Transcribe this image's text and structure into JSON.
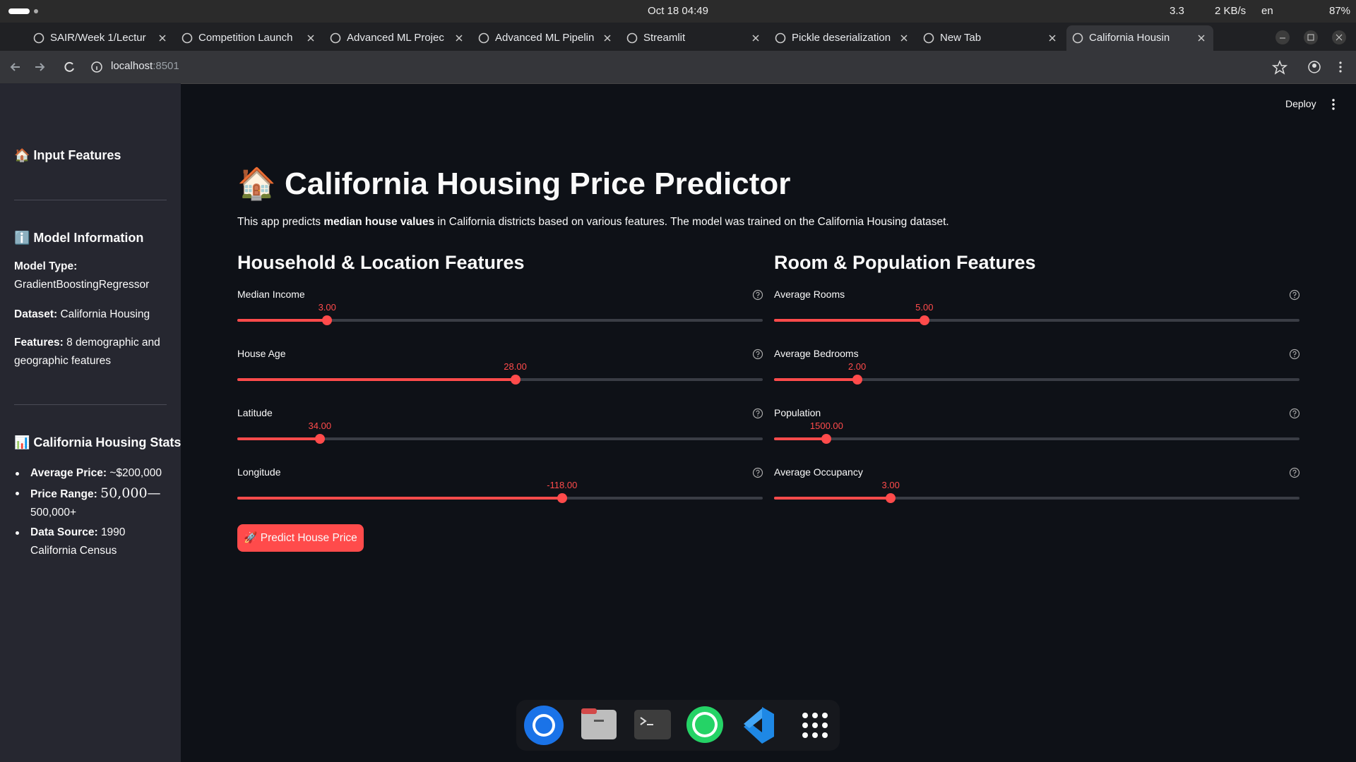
{
  "system_bar": {
    "date_time": "Oct 18  04:49",
    "display": "3.3",
    "network": "2 KB/s",
    "language": "en",
    "battery": "87%"
  },
  "tabs": [
    "SAIR/Week 1/Lectur",
    "Competition Launch",
    "Advanced ML Projec",
    "Advanced ML Pipelin",
    "Streamlit",
    "Pickle deserialization",
    "New Tab",
    "California Housin"
  ],
  "address_bar": {
    "url_host": "localhost",
    "url_port": ":8501"
  },
  "header": {
    "deploy": "Deploy"
  },
  "sidebar": {
    "title": "🏠 Input Features",
    "model_info": {
      "heading": "ℹ️ Model Information",
      "items": [
        [
          "Model Type:",
          "GradientBoostingRegressor"
        ],
        [
          "Dataset:",
          "California Housing"
        ],
        [
          "Features:",
          "8 demographic and geographic features"
        ]
      ]
    },
    "stats": {
      "heading": "📊 California Housing Stats",
      "items": [
        [
          "Average Price:",
          "~$200,000"
        ],
        [
          "Price Range:",
          "50,000—",
          "500,000+"
        ],
        [
          "Data Source:",
          "1990 California Census"
        ]
      ]
    }
  },
  "main": {
    "icon": "🏠",
    "title": "California Housing Price Predictor",
    "description": [
      "This app predicts ",
      "median house values",
      " in California districts based on various features. The model was trained on the California Housing dataset."
    ],
    "sections": [
      {
        "heading": "Household & Location Features",
        "sliders": [
          {
            "label": "Median Income",
            "value": "3.00"
          },
          {
            "label": "House Age",
            "value": "28.00"
          },
          {
            "label": "Latitude",
            "value": "34.00"
          },
          {
            "label": "Longitude",
            "value": "-118.00"
          }
        ]
      },
      {
        "heading": "Room & Population Features",
        "sliders": [
          {
            "label": "Average Rooms",
            "value": "5.00"
          },
          {
            "label": "Average Bedrooms",
            "value": "2.00"
          },
          {
            "label": "Population",
            "value": "1500.00"
          },
          {
            "label": "Average Occupancy",
            "value": "3.00"
          }
        ]
      }
    ],
    "button": "🚀 Predict House Price"
  }
}
